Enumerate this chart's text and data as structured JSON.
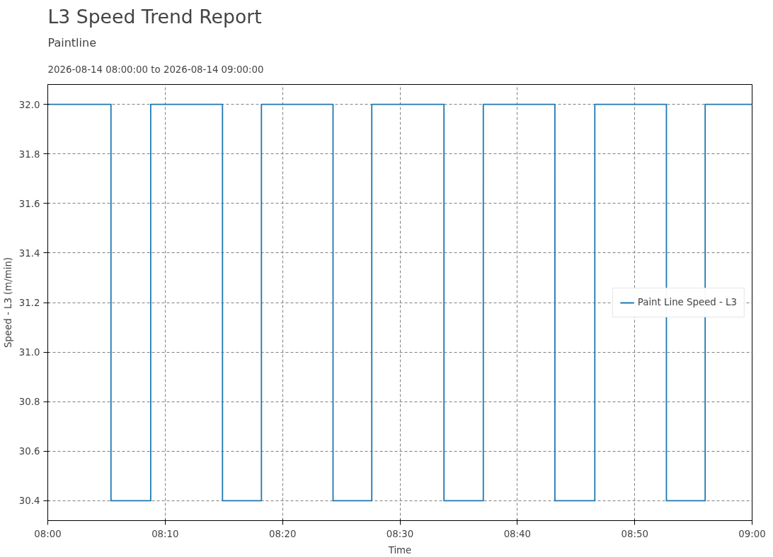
{
  "chart_data": {
    "type": "step",
    "title": "L3 Speed Trend Report",
    "subtitle": "Paintline",
    "annotations": [
      "2026-08-14 08:00:00 to 2026-08-14 09:00:00"
    ],
    "xlabel": "Time",
    "ylabel": "Speed - L3 (m/min)",
    "x": [
      "2026-08-14T08:00:00",
      "2026-08-14T08:05:23",
      "2026-08-14T08:08:46",
      "2026-08-14T08:14:53",
      "2026-08-14T08:18:12",
      "2026-08-14T08:24:18",
      "2026-08-14T08:27:36",
      "2026-08-14T08:33:45",
      "2026-08-14T08:37:06",
      "2026-08-14T08:43:12",
      "2026-08-14T08:46:36",
      "2026-08-14T08:52:42",
      "2026-08-14T08:56:00",
      "2026-08-14T09:00:00"
    ],
    "series": [
      {
        "name": "Paint Line Speed - L3",
        "color": "#1f77b4",
        "values": [
          32.0,
          30.4,
          32.0,
          30.4,
          32.0,
          30.4,
          32.0,
          30.4,
          32.0,
          30.4,
          32.0,
          30.4,
          32.0,
          32.0
        ]
      }
    ],
    "xlim": [
      "2026-08-14T08:00",
      "2026-08-14T09:00"
    ],
    "xticks": [
      {
        "value": "2026-08-14T08:00",
        "label": "08:00"
      },
      {
        "value": "2026-08-14T08:10",
        "label": "08:10"
      },
      {
        "value": "2026-08-14T08:20",
        "label": "08:20"
      },
      {
        "value": "2026-08-14T08:30",
        "label": "08:30"
      },
      {
        "value": "2026-08-14T08:40",
        "label": "08:40"
      },
      {
        "value": "2026-08-14T08:50",
        "label": "08:50"
      },
      {
        "value": "2026-08-14T09:00",
        "label": "09:00"
      }
    ],
    "ylim": [
      30.32,
      32.08
    ],
    "yticks": [
      30.4,
      30.6,
      30.8,
      {
        "value": 31,
        "label": "31.0"
      },
      31.2,
      31.4,
      31.6,
      31.8,
      {
        "value": 32,
        "label": "32.0"
      }
    ],
    "grid": true,
    "legend": "right",
    "marker": "none",
    "line_style": "solid"
  }
}
